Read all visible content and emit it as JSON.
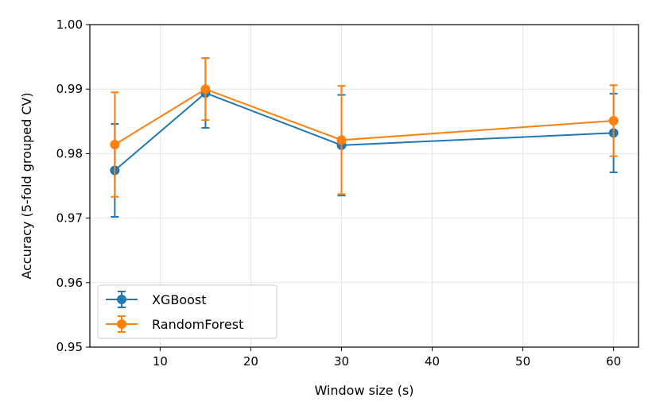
{
  "chart_data": {
    "type": "line",
    "title": "",
    "xlabel": "Window size (s)",
    "ylabel": "Accuracy (5-fold grouped CV)",
    "xlim": [
      2.25,
      62.75
    ],
    "ylim": [
      0.95,
      1.0
    ],
    "xticks": [
      10,
      20,
      30,
      40,
      50,
      60
    ],
    "xtick_labels": [
      "10",
      "20",
      "30",
      "40",
      "50",
      "60"
    ],
    "yticks": [
      0.95,
      0.96,
      0.97,
      0.98,
      0.99,
      1.0
    ],
    "ytick_labels": [
      "0.95",
      "0.96",
      "0.97",
      "0.98",
      "0.99",
      "1.00"
    ],
    "grid": true,
    "legend_position": "lower-left",
    "x": [
      5,
      15,
      30,
      60
    ],
    "series": [
      {
        "name": "XGBoost",
        "color": "#1f77b4",
        "values": [
          0.9774,
          0.9894,
          0.9813,
          0.9832
        ],
        "errors": [
          0.0072,
          0.0054,
          0.0078,
          0.0061
        ]
      },
      {
        "name": "RandomForest",
        "color": "#ff7f0e",
        "values": [
          0.9814,
          0.99,
          0.9821,
          0.9851
        ],
        "errors": [
          0.0081,
          0.0048,
          0.0084,
          0.0055
        ]
      }
    ]
  }
}
